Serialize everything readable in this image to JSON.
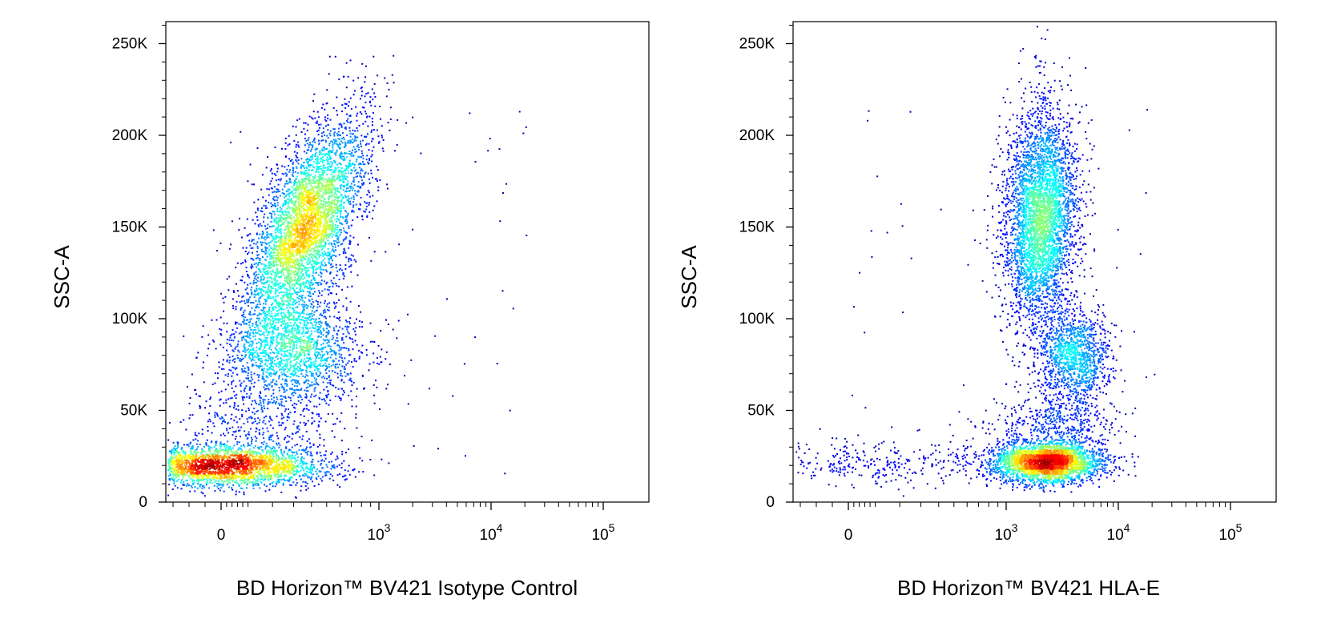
{
  "chart_data": [
    {
      "type": "scatter",
      "style": "density-colored dot plot (blue = low density, red = high density)",
      "xlabel": "BD Horizon™ BV421 Isotype Control",
      "ylabel": "SSC-A",
      "x_scale": "biexponential",
      "x_ticks": [
        {
          "value": 0,
          "base": "0",
          "exp": ""
        },
        {
          "value": 1000,
          "base": "10",
          "exp": "3"
        },
        {
          "value": 10000,
          "base": "10",
          "exp": "4"
        },
        {
          "value": 100000,
          "base": "10",
          "exp": "5"
        }
      ],
      "y_ticks": [
        {
          "value": 0,
          "label": "0"
        },
        {
          "value": 50000,
          "label": "50K"
        },
        {
          "value": 100000,
          "label": "100K"
        },
        {
          "value": 150000,
          "label": "150K"
        },
        {
          "value": 200000,
          "label": "200K"
        },
        {
          "value": 250000,
          "label": "250K"
        }
      ],
      "ylim": [
        0,
        262000
      ],
      "populations": [
        {
          "name": "",
          "x_center": 10,
          "y_center": 20000,
          "x_spread": 0.42,
          "y_spread": 5500,
          "count": 2800,
          "tilt": 0
        },
        {
          "name": "",
          "x_center": 360,
          "y_center": 150000,
          "x_spread": 0.18,
          "y_spread": 30000,
          "count": 4200,
          "tilt": 0.35
        },
        {
          "name": "",
          "x_center": 300,
          "y_center": 82000,
          "x_spread": 0.3,
          "y_spread": 14000,
          "count": 1500,
          "tilt": 0
        },
        {
          "name": "",
          "x_center": 140,
          "y_center": 45000,
          "x_spread": 0.35,
          "y_spread": 12000,
          "count": 400,
          "tilt": 0.2
        }
      ],
      "grid": false,
      "legend": "none"
    },
    {
      "type": "scatter",
      "style": "density-colored dot plot (blue = low density, red = high density)",
      "xlabel": "BD Horizon™ BV421 HLA-E",
      "ylabel": "SSC-A",
      "x_scale": "biexponential",
      "x_ticks": [
        {
          "value": 0,
          "base": "0",
          "exp": ""
        },
        {
          "value": 1000,
          "base": "10",
          "exp": "3"
        },
        {
          "value": 10000,
          "base": "10",
          "exp": "4"
        },
        {
          "value": 100000,
          "base": "10",
          "exp": "5"
        }
      ],
      "y_ticks": [
        {
          "value": 0,
          "label": "0"
        },
        {
          "value": 50000,
          "label": "50K"
        },
        {
          "value": 100000,
          "label": "100K"
        },
        {
          "value": 150000,
          "label": "150K"
        },
        {
          "value": 200000,
          "label": "200K"
        },
        {
          "value": 250000,
          "label": "250K"
        }
      ],
      "ylim": [
        0,
        262000
      ],
      "populations": [
        {
          "name": "",
          "x_center": 2200,
          "y_center": 22000,
          "x_spread": 0.22,
          "y_spread": 5500,
          "count": 3000,
          "tilt": 0
        },
        {
          "name": "",
          "x_center": 2000,
          "y_center": 155000,
          "x_spread": 0.13,
          "y_spread": 30000,
          "count": 4000,
          "tilt": 0.05
        },
        {
          "name": "",
          "x_center": 4000,
          "y_center": 80000,
          "x_spread": 0.13,
          "y_spread": 13000,
          "count": 1200,
          "tilt": 0
        },
        {
          "name": "",
          "x_center": 60,
          "y_center": 22000,
          "x_spread": 0.6,
          "y_spread": 6000,
          "count": 350,
          "tilt": 0
        },
        {
          "name": "",
          "x_center": 2500,
          "y_center": 42000,
          "x_spread": 0.25,
          "y_spread": 9000,
          "count": 500,
          "tilt": 0
        }
      ],
      "grid": false,
      "legend": "none"
    }
  ]
}
